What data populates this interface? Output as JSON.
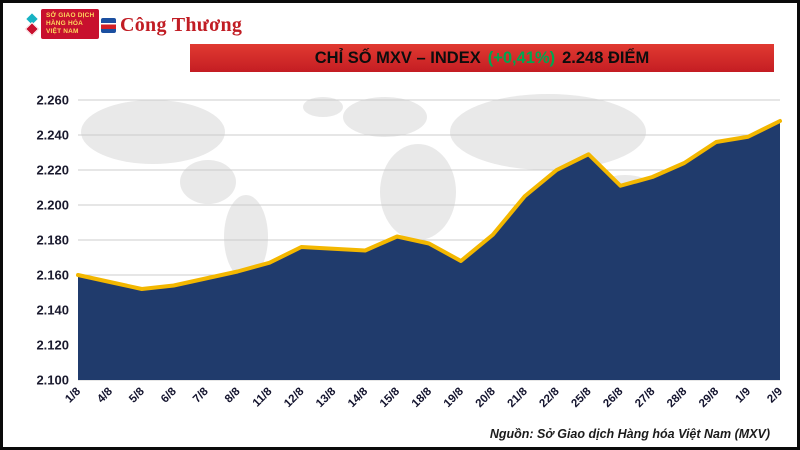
{
  "header": {
    "mxv_logo": {
      "line1": "SỞ GIAO DỊCH",
      "line2": "HÀNG HÓA",
      "line3": "VIỆT NAM"
    },
    "congthuong_logo": {
      "text": "Công Thương"
    }
  },
  "banner": {
    "title": "CHỈ SỐ MXV – INDEX",
    "change": "(+0,41%)",
    "value": "2.248 ĐIỂM",
    "bg_color": "#d2232a",
    "change_color": "#00a650"
  },
  "footer": {
    "source": "Nguồn: Sở Giao dịch Hàng hóa Việt Nam (MXV)"
  },
  "chart_data": {
    "type": "area",
    "title": "CHỈ SỐ MXV – INDEX (+0,41%) 2.248 ĐIỂM",
    "categories": [
      "1/8",
      "4/8",
      "5/8",
      "6/8",
      "7/8",
      "8/8",
      "11/8",
      "12/8",
      "13/8",
      "14/8",
      "15/8",
      "18/8",
      "19/8",
      "20/8",
      "21/8",
      "22/8",
      "25/8",
      "26/8",
      "27/8",
      "28/8",
      "29/8",
      "1/9",
      "2/9"
    ],
    "values": [
      2.16,
      2.156,
      2.152,
      2.154,
      2.158,
      2.162,
      2.167,
      2.176,
      2.175,
      2.174,
      2.182,
      2.178,
      2.168,
      2.183,
      2.205,
      2.22,
      2.229,
      2.211,
      2.216,
      2.224,
      2.236,
      2.239,
      2.248
    ],
    "ylim": [
      2.1,
      2.26
    ],
    "ytick_step": 0.02,
    "grid": true,
    "legend": "none",
    "line_color": "#f3b700",
    "fill_color": "#203b6c",
    "grid_color": "#cccccc",
    "tick_label_color": "#1a1a2e"
  }
}
